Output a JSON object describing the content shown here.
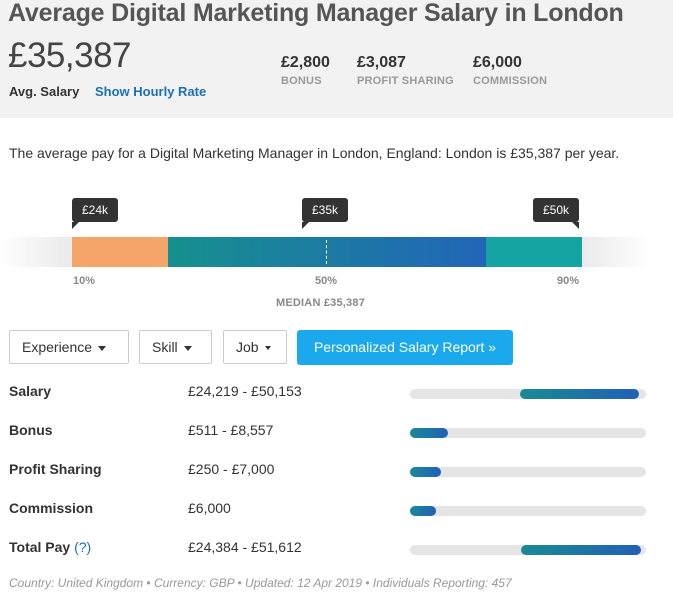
{
  "header": {
    "title": "Average Digital Marketing Manager Salary in London",
    "avg_value": "£35,387",
    "avg_label": "Avg. Salary",
    "hourly_link": "Show Hourly Rate",
    "stats": [
      {
        "value": "£2,800",
        "label": "BONUS"
      },
      {
        "value": "£3,087",
        "label": "PROFIT SHARING"
      },
      {
        "value": "£6,000",
        "label": "COMMISSION"
      }
    ]
  },
  "description": "The average pay for a Digital Marketing Manager in London, England: London is £35,387 per year.",
  "range": {
    "low_bubble": "£24k",
    "mid_bubble": "£35k",
    "high_bubble": "£50k",
    "p10": "10%",
    "p50": "50%",
    "p90": "90%",
    "median_label": "MEDIAN £35,387",
    "colors": {
      "low": "#f5a56a",
      "mid_start": "#16908e",
      "mid_end": "#2265b8",
      "high": "#15a3a3"
    }
  },
  "filters": {
    "experience": "Experience",
    "skill": "Skill",
    "job": "Job",
    "report": "Personalized Salary Report »"
  },
  "rows": [
    {
      "label": "Salary",
      "value": "£24,219 - £50,153",
      "fill_start": 0.465,
      "fill_end": 0.97
    },
    {
      "label": "Bonus",
      "value": "£511 - £8,557",
      "fill_start": 0.0,
      "fill_end": 0.16
    },
    {
      "label": "Profit Sharing",
      "value": "£250 - £7,000",
      "fill_start": 0.0,
      "fill_end": 0.13
    },
    {
      "label": "Commission",
      "value": "£6,000",
      "fill_start": 0.0,
      "fill_end": 0.11
    },
    {
      "label": "Total Pay",
      "help": "(?)",
      "value": "£24,384 - £51,612",
      "fill_start": 0.47,
      "fill_end": 0.98
    }
  ],
  "footer": "Country: United Kingdom • Currency: GBP • Updated: 12 Apr 2019 • Individuals Reporting: 457"
}
